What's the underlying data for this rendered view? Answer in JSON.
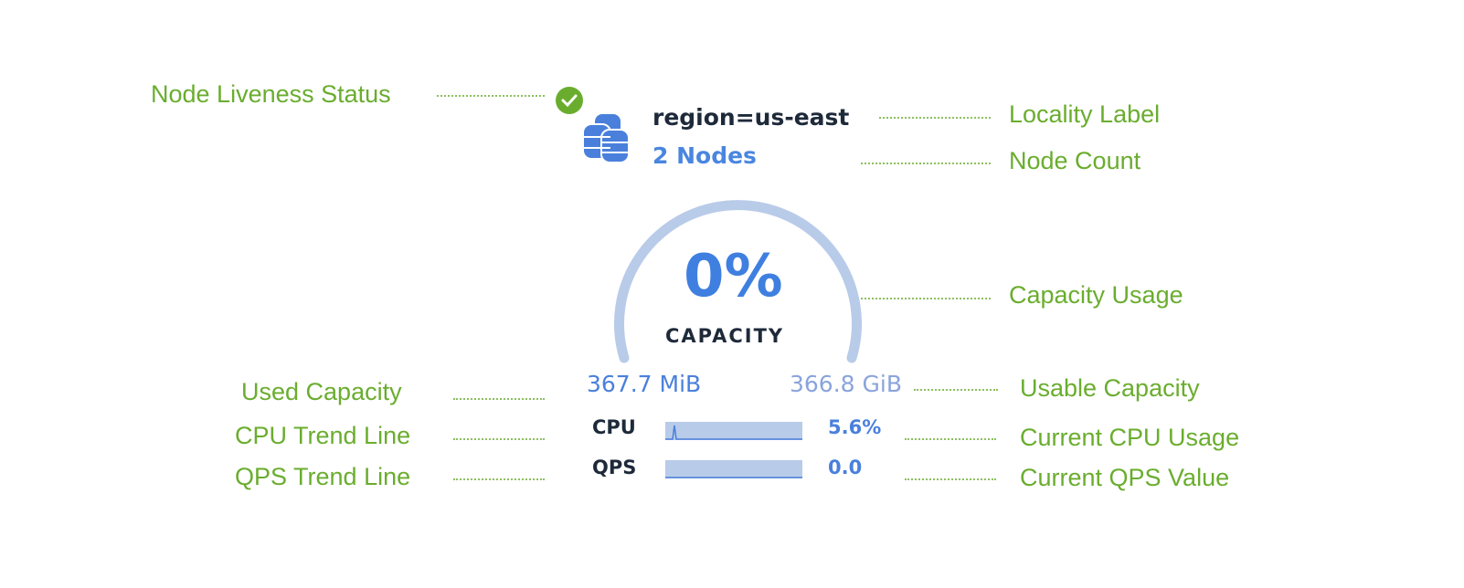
{
  "annotations": {
    "liveness": "Node Liveness Status",
    "locality": "Locality Label",
    "node_count": "Node Count",
    "capacity_usage": "Capacity Usage",
    "used_capacity": "Used Capacity",
    "usable_capacity": "Usable Capacity",
    "cpu_trend": "CPU Trend Line",
    "current_cpu": "Current CPU Usage",
    "qps_trend": "QPS Trend Line",
    "current_qps": "Current QPS Value"
  },
  "widget": {
    "status": "live",
    "status_icon": "check-circle-icon",
    "locality": "region=us-east",
    "node_count": "2 Nodes",
    "capacity_percent_label": "0%",
    "capacity_percent": 0,
    "capacity_label": "CAPACITY",
    "used": "367.7 MiB",
    "usable": "366.8 GiB",
    "cpu_label": "CPU",
    "cpu_value": "5.6%",
    "qps_label": "QPS",
    "qps_value": "0.0"
  },
  "colors": {
    "annotation": "#6aad2e",
    "accent": "#3f7fe0",
    "gauge_track": "#b8cbe8",
    "status_ok": "#6aad2e"
  }
}
